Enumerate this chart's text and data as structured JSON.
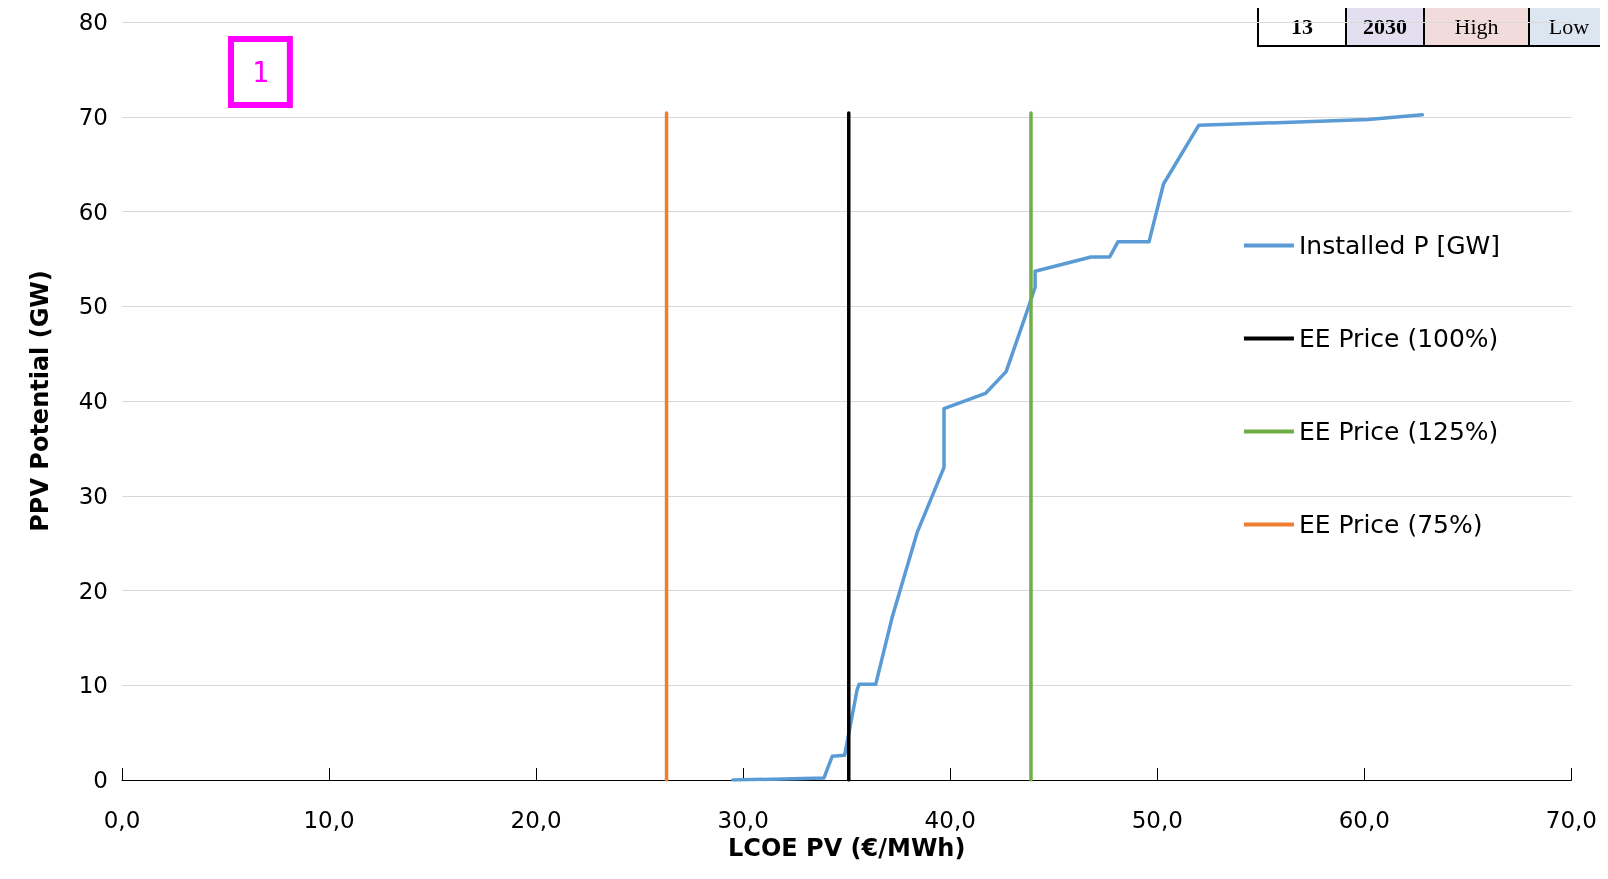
{
  "chart_data": {
    "type": "line",
    "xlabel": "LCOE PV (€/MWh)",
    "ylabel": "PPV Potential (GW)",
    "xlim": [
      0,
      70
    ],
    "xticks": [
      {
        "value": 0,
        "label": "0,0"
      },
      {
        "value": 10,
        "label": "10,0"
      },
      {
        "value": 20,
        "label": "20,0"
      },
      {
        "value": 30,
        "label": "30,0"
      },
      {
        "value": 40,
        "label": "40,0"
      },
      {
        "value": 50,
        "label": "50,0"
      },
      {
        "value": 60,
        "label": "60,0"
      },
      {
        "value": 70,
        "label": "70,0"
      }
    ],
    "ylim": [
      0,
      80
    ],
    "yticks": [
      0,
      10,
      20,
      30,
      40,
      50,
      60,
      70,
      80
    ],
    "grid": "y",
    "legend": "right",
    "marker": "none",
    "line_style": "solid",
    "series": [
      {
        "name": "Installed P [GW]",
        "color": "#5b9bd5",
        "x": [
          29.5,
          33.9,
          34.3,
          34.9,
          35.5,
          35.6,
          36.4,
          37.2,
          38.4,
          39.7,
          39.7,
          41.7,
          42.7,
          43.7,
          44.1,
          44.1,
          46.8,
          47.7,
          48.1,
          49.6,
          50.3,
          52.0,
          60.2,
          62.8
        ],
        "values": [
          0,
          0.2,
          2.5,
          2.6,
          9.5,
          10.1,
          10.1,
          17.2,
          26.1,
          33.0,
          39.2,
          40.8,
          43.1,
          49.4,
          52.0,
          53.7,
          55.2,
          55.2,
          56.8,
          56.8,
          62.9,
          69.1,
          69.7,
          70.2
        ]
      },
      {
        "name": "EE Price (100%)",
        "color": "#000000",
        "x": [
          35.1,
          35.1
        ],
        "values": [
          0,
          70.4
        ]
      },
      {
        "name": "EE Price (125%)",
        "color": "#70ad47",
        "x": [
          43.9,
          43.9
        ],
        "values": [
          0,
          70.4
        ]
      },
      {
        "name": "EE Price (75%)",
        "color": "#ed7d31",
        "x": [
          26.3,
          26.3
        ],
        "values": [
          0,
          70.4
        ]
      }
    ],
    "annotations": [
      "1",
      "13",
      "2030",
      "High",
      "Low"
    ]
  }
}
